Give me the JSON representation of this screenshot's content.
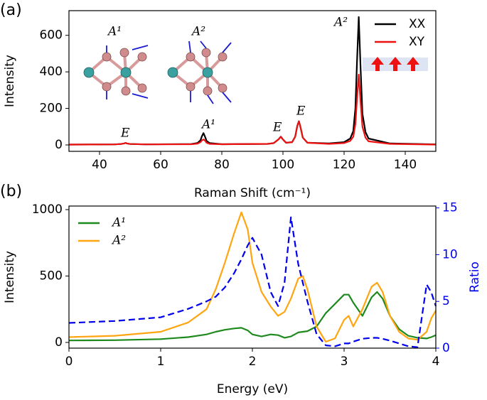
{
  "chart_data": [
    {
      "type": "line",
      "panel": "(a)",
      "x_label": "Raman Shift (cm⁻¹)",
      "y_label": "Intensity",
      "xlim": [
        30,
        150
      ],
      "xticks": [
        40,
        60,
        80,
        100,
        120,
        140
      ],
      "ylim": [
        -35,
        735
      ],
      "yticks": [
        0,
        200,
        400,
        600
      ],
      "grid": false,
      "legend": "upper right",
      "annotations": [
        "A¹",
        "A²",
        "E",
        "A¹",
        "E",
        "E",
        "A²"
      ],
      "x": [
        30,
        45,
        47,
        48,
        48.5,
        49,
        50,
        55,
        70,
        72,
        73,
        73.5,
        74,
        74.5,
        75,
        76,
        80,
        95,
        97,
        98.5,
        99.3,
        100,
        101,
        103,
        104,
        104.7,
        105.2,
        105.7,
        106.5,
        108,
        115,
        120,
        122,
        123,
        123.7,
        124.2,
        124.8,
        125.4,
        126,
        127,
        128,
        135,
        150
      ],
      "series": [
        {
          "name": "XX",
          "color": "#000000",
          "linestyle": "solid",
          "values": [
            2,
            3,
            5,
            8,
            11,
            8,
            5,
            3,
            5,
            10,
            25,
            48,
            65,
            45,
            22,
            10,
            4,
            6,
            10,
            30,
            45,
            30,
            12,
            15,
            45,
            105,
            130,
            100,
            40,
            12,
            8,
            15,
            35,
            75,
            200,
            450,
            700,
            420,
            170,
            70,
            35,
            8,
            3
          ]
        },
        {
          "name": "XY",
          "color": "#ee1111",
          "linestyle": "solid",
          "values": [
            2,
            3,
            5,
            8,
            11,
            8,
            5,
            3,
            4,
            7,
            15,
            25,
            30,
            24,
            12,
            6,
            4,
            6,
            10,
            30,
            45,
            30,
            12,
            15,
            45,
            105,
            130,
            100,
            40,
            12,
            6,
            10,
            22,
            45,
            115,
            250,
            385,
            235,
            100,
            40,
            20,
            6,
            2
          ]
        }
      ]
    },
    {
      "type": "line",
      "panel": "(b)",
      "x_label": "Energy (eV)",
      "y_label": "Intensity",
      "y2_label": "Ratio",
      "xlim": [
        0,
        4
      ],
      "xticks": [
        0,
        1,
        2,
        3,
        4
      ],
      "ylim": [
        -43,
        1027
      ],
      "yticks": [
        0,
        500,
        1000
      ],
      "y2lim": [
        0,
        15.2
      ],
      "y2ticks": [
        0,
        5,
        10,
        15
      ],
      "y2color": "#0000ee",
      "grid": false,
      "legend": "upper left",
      "x": [
        0,
        0.5,
        1,
        1.3,
        1.5,
        1.6,
        1.7,
        1.8,
        1.88,
        1.95,
        2.0,
        2.1,
        2.2,
        2.28,
        2.35,
        2.42,
        2.5,
        2.55,
        2.6,
        2.7,
        2.8,
        2.9,
        3.0,
        3.05,
        3.1,
        3.2,
        3.3,
        3.36,
        3.42,
        3.5,
        3.6,
        3.7,
        3.8,
        3.9,
        3.95,
        4.0
      ],
      "series": [
        {
          "name": "A¹",
          "color": "#1e8a1e",
          "linestyle": "solid",
          "values": [
            15,
            17,
            25,
            40,
            60,
            80,
            95,
            105,
            110,
            90,
            60,
            45,
            60,
            55,
            35,
            45,
            75,
            80,
            85,
            120,
            220,
            290,
            360,
            360,
            300,
            200,
            340,
            380,
            330,
            200,
            100,
            50,
            35,
            30,
            40,
            55
          ]
        },
        {
          "name": "A²",
          "color": "#ffa50f",
          "linestyle": "solid",
          "values": [
            40,
            50,
            80,
            150,
            250,
            400,
            600,
            820,
            980,
            850,
            600,
            380,
            270,
            200,
            230,
            330,
            480,
            500,
            400,
            120,
            5,
            30,
            170,
            200,
            120,
            250,
            420,
            450,
            380,
            200,
            80,
            30,
            20,
            80,
            180,
            240
          ]
        },
        {
          "color": "#0000ee",
          "linestyle": "dashed",
          "axis": "y2",
          "values": [
            2.7,
            2.9,
            3.3,
            4.2,
            5,
            5.5,
            6.5,
            8,
            9.5,
            11,
            11.8,
            10,
            6,
            4.5,
            7,
            14,
            9,
            7,
            5,
            1.5,
            0.3,
            0.2,
            0.5,
            0.5,
            0.7,
            1.0,
            1.1,
            1.1,
            1.0,
            0.8,
            0.5,
            0.2,
            0.1,
            6.8,
            6.0,
            4.5
          ]
        }
      ]
    }
  ]
}
